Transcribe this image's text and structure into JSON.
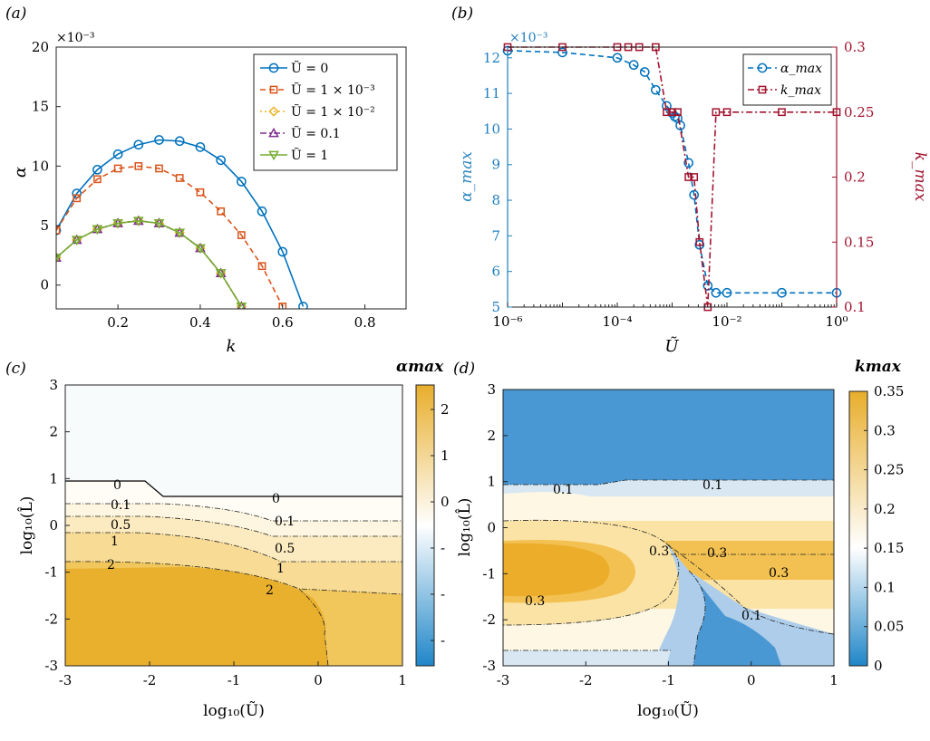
{
  "figure": {
    "colors": {
      "blue": "#0072BD",
      "orange": "#D95319",
      "yellow": "#EDB120",
      "purple": "#7E2F8E",
      "green": "#77AC30",
      "crimson": "#A2142F",
      "alpha_label": "#2E86C1"
    }
  },
  "chart_data": [
    {
      "panel": "(a)",
      "type": "line",
      "xlabel": "k",
      "ylabel": "α",
      "exponent": "×10⁻³",
      "xlim": [
        0.05,
        0.9
      ],
      "ylim": [
        -2,
        20
      ],
      "xticks": [
        0.2,
        0.4,
        0.6,
        0.8
      ],
      "xtick_labels": [
        "0.2",
        "0.4",
        "0.6",
        "0.8"
      ],
      "yticks": [
        0,
        5,
        10,
        15,
        20
      ],
      "ytick_labels": [
        "0",
        "5",
        "10",
        "15",
        "20"
      ],
      "legend_position": "top-right",
      "series": [
        {
          "name": "Ũ = 0",
          "marker": "circle",
          "style": "solid",
          "color": "#0072BD",
          "x": [
            0.05,
            0.1,
            0.15,
            0.2,
            0.25,
            0.3,
            0.35,
            0.4,
            0.45,
            0.5,
            0.55,
            0.6,
            0.65
          ],
          "y": [
            4.6,
            7.7,
            9.7,
            11.0,
            11.8,
            12.2,
            12.1,
            11.6,
            10.5,
            8.7,
            6.2,
            2.8,
            -1.8
          ]
        },
        {
          "name": "Ũ = 1 × 10⁻³",
          "marker": "square",
          "style": "dashed",
          "color": "#D95319",
          "x": [
            0.05,
            0.1,
            0.15,
            0.2,
            0.25,
            0.3,
            0.35,
            0.4,
            0.45,
            0.5,
            0.55,
            0.6
          ],
          "y": [
            4.6,
            7.3,
            8.9,
            9.8,
            10.0,
            9.8,
            9.0,
            7.8,
            6.2,
            4.2,
            1.6,
            -1.8
          ]
        },
        {
          "name": "Ũ = 1 × 10⁻²",
          "marker": "diamond",
          "style": "dotted",
          "color": "#EDB120",
          "x": [
            0.05,
            0.1,
            0.15,
            0.2,
            0.25,
            0.3,
            0.35,
            0.4,
            0.45,
            0.5
          ],
          "y": [
            2.3,
            3.8,
            4.7,
            5.2,
            5.4,
            5.2,
            4.4,
            3.1,
            1.0,
            -1.8
          ]
        },
        {
          "name": "Ũ = 0.1",
          "marker": "triangle-up",
          "style": "dashdot",
          "color": "#7E2F8E",
          "x": [
            0.05,
            0.1,
            0.15,
            0.2,
            0.25,
            0.3,
            0.35,
            0.4,
            0.45,
            0.5
          ],
          "y": [
            2.3,
            3.8,
            4.7,
            5.2,
            5.4,
            5.2,
            4.4,
            3.1,
            1.0,
            -1.8
          ]
        },
        {
          "name": "Ũ = 1",
          "marker": "triangle-down",
          "style": "solid",
          "color": "#77AC30",
          "x": [
            0.05,
            0.1,
            0.15,
            0.2,
            0.25,
            0.3,
            0.35,
            0.4,
            0.45,
            0.5
          ],
          "y": [
            2.3,
            3.8,
            4.7,
            5.2,
            5.4,
            5.2,
            4.4,
            3.1,
            1.0,
            -1.8
          ]
        }
      ]
    },
    {
      "panel": "(b)",
      "type": "line",
      "xscale": "log",
      "xlabel": "Ũ",
      "xlim_log10": [
        -6,
        0
      ],
      "xtick_labels": [
        "10⁻⁶",
        "10⁻⁴",
        "10⁻²",
        "10⁰"
      ],
      "left_axis": {
        "label": "α_max",
        "exponent": "×10⁻³",
        "ylim": [
          5,
          12.3
        ],
        "yticks": [
          5,
          6,
          7,
          8,
          9,
          10,
          11,
          12
        ],
        "ytick_labels": [
          "5",
          "6",
          "7",
          "8",
          "9",
          "10",
          "11",
          "12"
        ]
      },
      "right_axis": {
        "label": "k_max",
        "ylim": [
          0.1,
          0.3
        ],
        "yticks": [
          0.1,
          0.15,
          0.2,
          0.25,
          0.3
        ],
        "ytick_labels": [
          "0.1",
          "0.15",
          "0.2",
          "0.25",
          "0.3"
        ]
      },
      "legend_position": "top-right",
      "series": [
        {
          "name": "α_max",
          "axis": "left",
          "marker": "circle",
          "style": "dashed",
          "color": "#0072BD",
          "log10_x": [
            -6,
            -5,
            -4,
            -3.7,
            -3.5,
            -3.3,
            -3.1,
            -3.0,
            -2.95,
            -2.9,
            -2.85,
            -2.7,
            -2.6,
            -2.5,
            -2.35,
            -2.2,
            -2.0,
            -1.0,
            0.0
          ],
          "y": [
            12.2,
            12.15,
            12.0,
            11.8,
            11.6,
            11.1,
            10.65,
            10.45,
            10.35,
            10.3,
            10.1,
            9.05,
            8.15,
            6.75,
            5.6,
            5.4,
            5.4,
            5.4,
            5.4
          ]
        },
        {
          "name": "k_max",
          "axis": "right",
          "marker": "square",
          "style": "dashdot",
          "color": "#A2142F",
          "log10_x": [
            -6,
            -5,
            -4,
            -3.8,
            -3.6,
            -3.3,
            -3.1,
            -3.0,
            -2.9,
            -2.7,
            -2.6,
            -2.5,
            -2.35,
            -2.2,
            -2.0,
            -1.0,
            0.0
          ],
          "y": [
            0.3,
            0.3,
            0.3,
            0.3,
            0.3,
            0.3,
            0.25,
            0.25,
            0.25,
            0.2,
            0.2,
            0.15,
            0.1,
            0.25,
            0.25,
            0.25,
            0.25
          ]
        }
      ]
    },
    {
      "panel": "(c)",
      "type": "heatmap",
      "title": "αmax",
      "xlabel": "log₁₀(Ũ)",
      "ylabel": "log₁₀(L̂)",
      "xlim": [
        -3,
        1
      ],
      "ylim": [
        -3,
        3
      ],
      "xtick_labels": [
        "-3",
        "-2",
        "-1",
        "0",
        "1"
      ],
      "ytick_labels": [
        "-3",
        "-2",
        "-1",
        "0",
        "1",
        "2",
        "3"
      ],
      "colorbar_tick_labels": [
        "2",
        "1",
        "0",
        "-",
        "-",
        "-"
      ],
      "contour_labels": [
        "0",
        "0",
        "0.1",
        "0.1",
        "0.5",
        "0.5",
        "1",
        "1",
        "2",
        "2"
      ]
    },
    {
      "panel": "(d)",
      "type": "heatmap",
      "title": "kmax",
      "xlabel": "log₁₀(Ũ)",
      "ylabel": "log₁₀(L̂)",
      "xlim": [
        -3,
        1
      ],
      "ylim": [
        -3,
        3
      ],
      "xtick_labels": [
        "-3",
        "-2",
        "-1",
        "0",
        "1"
      ],
      "ytick_labels": [
        "-3",
        "-2",
        "-1",
        "0",
        "1",
        "2",
        "3"
      ],
      "colorbar_tick_labels": [
        "0.35",
        "0.3",
        "0.25",
        "0.2",
        "0.15",
        "0.1",
        "0.05",
        "0"
      ],
      "contour_labels": [
        "0.1",
        "0.1",
        "0.3",
        "0.3",
        "0.3",
        "0.3",
        "0.1"
      ]
    }
  ]
}
